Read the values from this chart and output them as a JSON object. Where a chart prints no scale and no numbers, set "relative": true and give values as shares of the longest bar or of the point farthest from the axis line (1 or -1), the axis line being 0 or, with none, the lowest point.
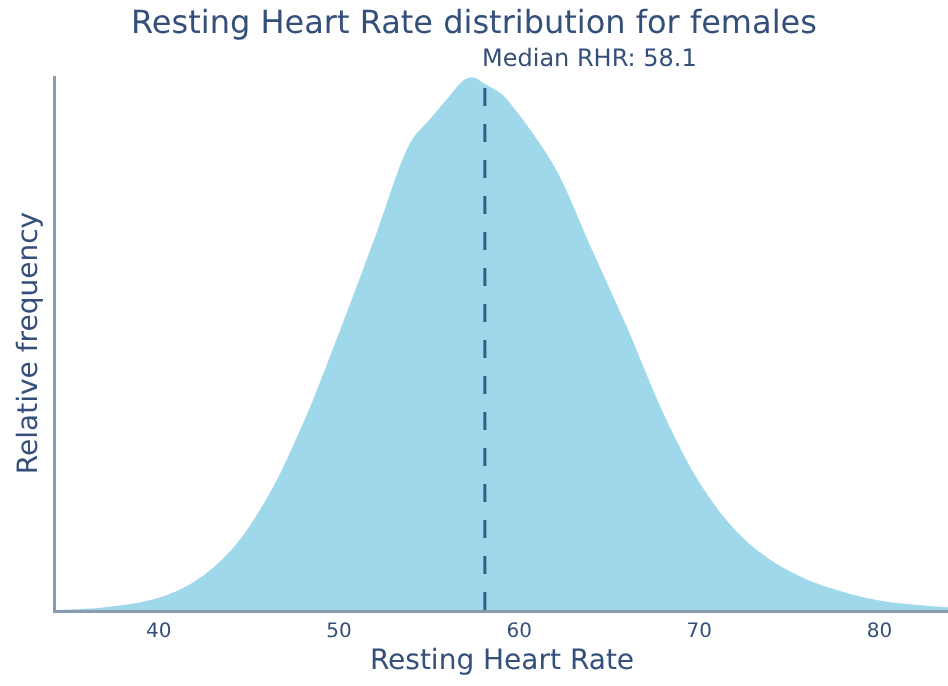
{
  "chart_data": {
    "type": "area",
    "title": "Resting Heart Rate distribution for females",
    "xlabel": "Resting Heart Rate",
    "ylabel": "Relative frequency",
    "relative": true,
    "xlim": [
      34.3,
      83.8
    ],
    "xticks": [
      40,
      50,
      60,
      70,
      80
    ],
    "grid": false,
    "x": [
      34.3,
      37,
      40,
      42,
      44,
      46,
      48,
      50,
      52,
      54,
      55,
      56,
      57,
      57.5,
      58,
      59,
      60,
      62,
      64,
      66,
      68,
      70,
      72,
      74,
      76,
      78,
      80,
      82,
      83.8
    ],
    "series": [
      {
        "color": "#9ed8ea",
        "values": [
          0,
          0.005,
          0.023,
          0.054,
          0.112,
          0.21,
          0.35,
          0.52,
          0.7,
          0.88,
          0.92,
          0.96,
          0.997,
          1,
          0.99,
          0.97,
          0.93,
          0.83,
          0.68,
          0.53,
          0.37,
          0.24,
          0.15,
          0.093,
          0.057,
          0.034,
          0.018,
          0.01,
          0.005
        ]
      }
    ],
    "ref_lines": [
      {
        "axis": "x",
        "value": 58.1,
        "label": "Median RHR: 58.1",
        "color": "#2e5f8a",
        "line_style": "dashed"
      }
    ]
  }
}
